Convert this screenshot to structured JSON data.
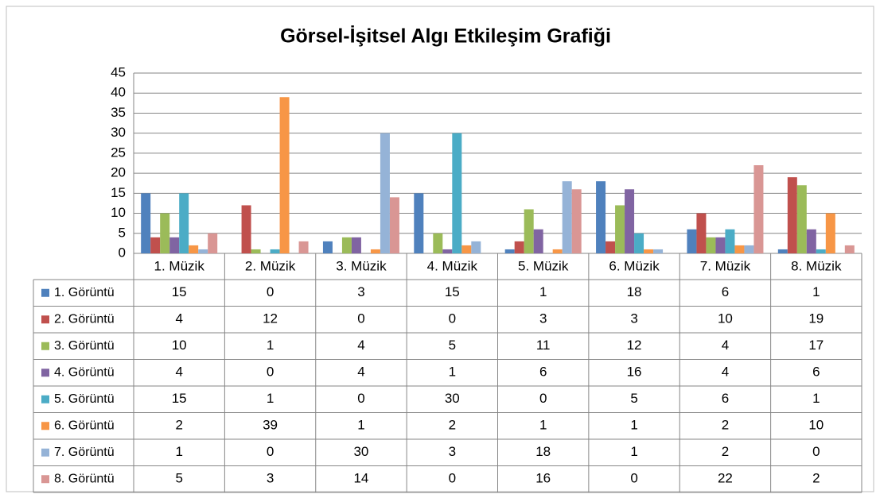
{
  "chart_data": {
    "type": "bar",
    "title": "Görsel-İşitsel Algı Etkileşim Grafiği",
    "categories": [
      "1. Müzik",
      "2. Müzik",
      "3. Müzik",
      "4. Müzik",
      "5. Müzik",
      "6. Müzik",
      "7. Müzik",
      "8. Müzik"
    ],
    "series": [
      {
        "name": "1. Görüntü",
        "color": "#4f81bd",
        "values": [
          15,
          0,
          3,
          15,
          1,
          18,
          6,
          1
        ]
      },
      {
        "name": "2. Görüntü",
        "color": "#c0504d",
        "values": [
          4,
          12,
          0,
          0,
          3,
          3,
          10,
          19
        ]
      },
      {
        "name": "3. Görüntü",
        "color": "#9bbb59",
        "values": [
          10,
          1,
          4,
          5,
          11,
          12,
          4,
          17
        ]
      },
      {
        "name": "4. Görüntü",
        "color": "#8064a2",
        "values": [
          4,
          0,
          4,
          1,
          6,
          16,
          4,
          6
        ]
      },
      {
        "name": "5. Görüntü",
        "color": "#4bacc6",
        "values": [
          15,
          1,
          0,
          30,
          0,
          5,
          6,
          1
        ]
      },
      {
        "name": "6. Görüntü",
        "color": "#f79646",
        "values": [
          2,
          39,
          1,
          2,
          1,
          1,
          2,
          10
        ]
      },
      {
        "name": "7. Görüntü",
        "color": "#95b3d7",
        "values": [
          1,
          0,
          30,
          3,
          18,
          1,
          2,
          0
        ]
      },
      {
        "name": "8. Görüntü",
        "color": "#d99694",
        "values": [
          5,
          3,
          14,
          0,
          16,
          0,
          22,
          2
        ]
      }
    ],
    "ylim": [
      0,
      45
    ],
    "yticks": [
      0,
      5,
      10,
      15,
      20,
      25,
      30,
      35,
      40,
      45
    ],
    "grid": true
  }
}
